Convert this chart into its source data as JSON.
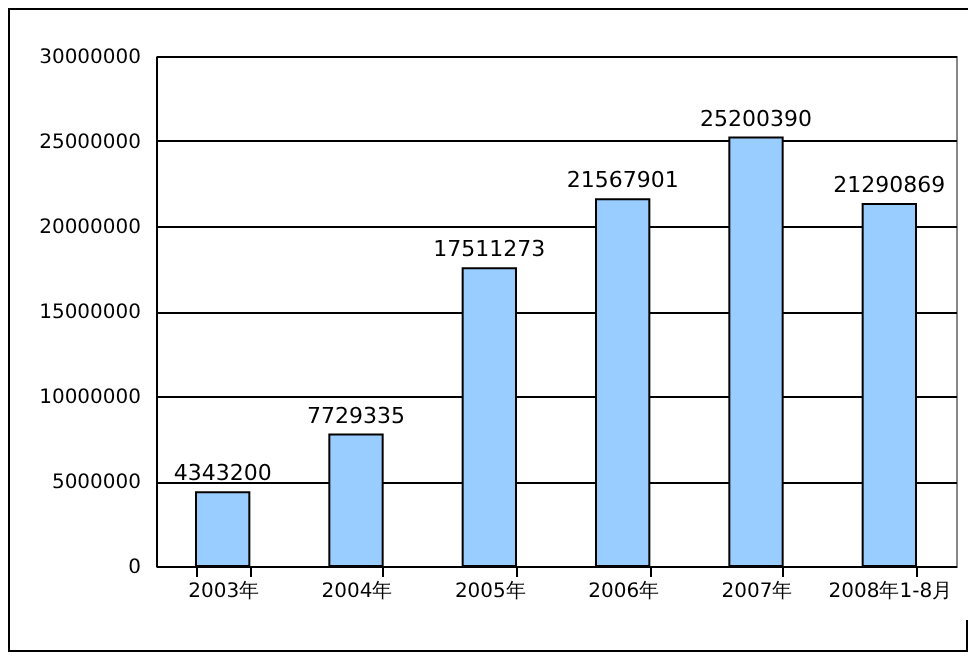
{
  "chart_data": {
    "type": "bar",
    "categories": [
      "2003年",
      "2004年",
      "2005年",
      "2006年",
      "2007年",
      "2008年1-8月"
    ],
    "values": [
      4343200,
      7729335,
      17511273,
      21567901,
      25200390,
      21290869
    ],
    "color": "#99ccff",
    "ylim": [
      0,
      30000000
    ],
    "yticks": [
      0,
      5000000,
      10000000,
      15000000,
      20000000,
      25000000,
      30000000
    ],
    "grid": "y",
    "data_labels": true
  }
}
